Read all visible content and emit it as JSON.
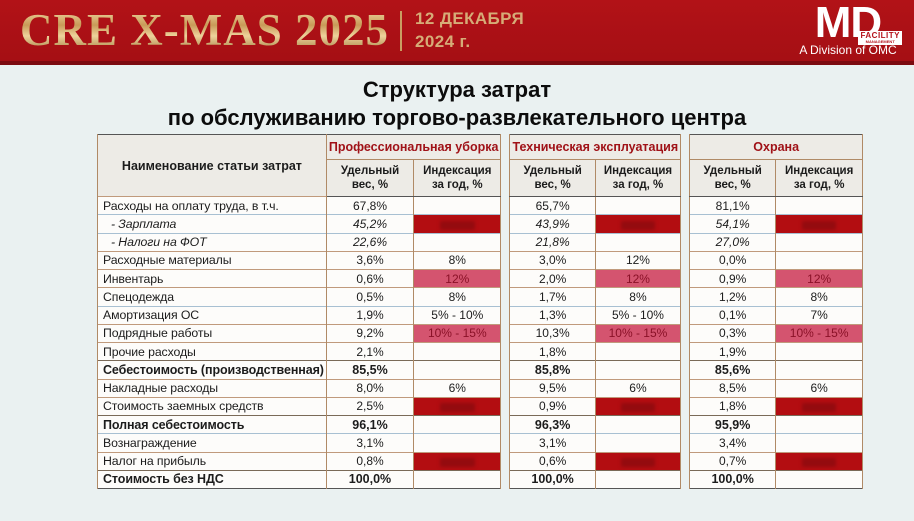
{
  "header": {
    "event_title": "CRE X-MAS 2025",
    "date_line1": "12 ДЕКАБРЯ",
    "date_line2": "2024 г.",
    "logo": {
      "main": "MD",
      "badge_line1": "FACILITY",
      "badge_line2": "MANAGEMENT",
      "division": "A Division of OMC"
    }
  },
  "title": {
    "line1": "Структура затрат",
    "line2": "по обслуживанию торгово-развлекательного центра"
  },
  "table": {
    "row_header": "Наименование статьи затрат",
    "subheaders": [
      "Удельный вес, %",
      "Индексация за год, %"
    ],
    "groups": [
      {
        "id": "cleaning",
        "label": "Профессиональная уборка"
      },
      {
        "id": "maintenance",
        "label": "Техническая эксплуатация"
      },
      {
        "id": "security",
        "label": "Охрана"
      }
    ],
    "rows": [
      {
        "label": "Расходы на оплату труда, в т.ч.",
        "style": "normal",
        "cells": [
          {
            "v": "67,8%"
          },
          {
            "v": ""
          },
          {
            "v": "65,7%"
          },
          {
            "v": ""
          },
          {
            "v": "81,1%"
          },
          {
            "v": ""
          }
        ]
      },
      {
        "label": "- Зарплата",
        "style": "sub",
        "cells": [
          {
            "v": "45,2%"
          },
          {
            "v": "",
            "h": "redacted"
          },
          {
            "v": "43,9%"
          },
          {
            "v": "",
            "h": "redacted"
          },
          {
            "v": "54,1%"
          },
          {
            "v": "",
            "h": "redacted"
          }
        ]
      },
      {
        "label": "- Налоги на ФОТ",
        "style": "sub",
        "cells": [
          {
            "v": "22,6%"
          },
          {
            "v": ""
          },
          {
            "v": "21,8%"
          },
          {
            "v": ""
          },
          {
            "v": "27,0%"
          },
          {
            "v": ""
          }
        ]
      },
      {
        "label": "Расходные материалы",
        "style": "normal",
        "cells": [
          {
            "v": "3,6%"
          },
          {
            "v": "8%"
          },
          {
            "v": "3,0%"
          },
          {
            "v": "12%"
          },
          {
            "v": "0,0%"
          },
          {
            "v": ""
          }
        ]
      },
      {
        "label": "Инвентарь",
        "style": "normal",
        "cells": [
          {
            "v": "0,6%"
          },
          {
            "v": "12%",
            "h": "pink"
          },
          {
            "v": "2,0%"
          },
          {
            "v": "12%",
            "h": "pink"
          },
          {
            "v": "0,9%"
          },
          {
            "v": "12%",
            "h": "pink"
          }
        ]
      },
      {
        "label": "Спецодежда",
        "style": "normal",
        "cells": [
          {
            "v": "0,5%"
          },
          {
            "v": "8%"
          },
          {
            "v": "1,7%"
          },
          {
            "v": "8%"
          },
          {
            "v": "1,2%"
          },
          {
            "v": "8%"
          }
        ]
      },
      {
        "label": "Амортизация ОС",
        "style": "normal",
        "cells": [
          {
            "v": "1,9%"
          },
          {
            "v": "5% - 10%"
          },
          {
            "v": "1,3%"
          },
          {
            "v": "5% - 10%"
          },
          {
            "v": "0,1%"
          },
          {
            "v": "7%"
          }
        ]
      },
      {
        "label": "Подрядные работы",
        "style": "normal",
        "cells": [
          {
            "v": "9,2%"
          },
          {
            "v": "10% - 15%",
            "h": "pink"
          },
          {
            "v": "10,3%"
          },
          {
            "v": "10% - 15%",
            "h": "pink"
          },
          {
            "v": "0,3%"
          },
          {
            "v": "10% - 15%",
            "h": "pink"
          }
        ]
      },
      {
        "label": "Прочие расходы",
        "style": "normal",
        "cells": [
          {
            "v": "2,1%"
          },
          {
            "v": ""
          },
          {
            "v": "1,8%"
          },
          {
            "v": ""
          },
          {
            "v": "1,9%"
          },
          {
            "v": ""
          }
        ]
      },
      {
        "label": "Себестоимость (производственная)",
        "style": "bold",
        "cells": [
          {
            "v": "85,5%"
          },
          {
            "v": ""
          },
          {
            "v": "85,8%"
          },
          {
            "v": ""
          },
          {
            "v": "85,6%"
          },
          {
            "v": ""
          }
        ]
      },
      {
        "label": "Накладные расходы",
        "style": "normal",
        "cells": [
          {
            "v": "8,0%"
          },
          {
            "v": "6%"
          },
          {
            "v": "9,5%"
          },
          {
            "v": "6%"
          },
          {
            "v": "8,5%"
          },
          {
            "v": "6%"
          }
        ]
      },
      {
        "label": "Стоимость заемных средств",
        "style": "normal",
        "cells": [
          {
            "v": "2,5%"
          },
          {
            "v": "",
            "h": "redacted"
          },
          {
            "v": "0,9%"
          },
          {
            "v": "",
            "h": "redacted"
          },
          {
            "v": "1,8%"
          },
          {
            "v": "",
            "h": "redacted"
          }
        ]
      },
      {
        "label": "Полная себестоимость",
        "style": "bold",
        "cells": [
          {
            "v": "96,1%"
          },
          {
            "v": ""
          },
          {
            "v": "96,3%"
          },
          {
            "v": ""
          },
          {
            "v": "95,9%"
          },
          {
            "v": ""
          }
        ]
      },
      {
        "label": "Вознаграждение",
        "style": "normal",
        "cells": [
          {
            "v": "3,1%"
          },
          {
            "v": ""
          },
          {
            "v": "3,1%"
          },
          {
            "v": ""
          },
          {
            "v": "3,4%"
          },
          {
            "v": ""
          }
        ]
      },
      {
        "label": "Налог на прибыль",
        "style": "normal",
        "cells": [
          {
            "v": "0,8%"
          },
          {
            "v": "",
            "h": "redacted"
          },
          {
            "v": "0,6%"
          },
          {
            "v": "",
            "h": "redacted"
          },
          {
            "v": "0,7%"
          },
          {
            "v": "",
            "h": "redacted"
          }
        ]
      },
      {
        "label": "Стоимость без НДС",
        "style": "bold",
        "cells": [
          {
            "v": "100,0%"
          },
          {
            "v": ""
          },
          {
            "v": "100,0%"
          },
          {
            "v": ""
          },
          {
            "v": "100,0%"
          },
          {
            "v": ""
          }
        ]
      }
    ]
  },
  "colors": {
    "header_red": "#ad1015",
    "header_red_dark": "#7c0b10",
    "gold": "#d6ac77",
    "group_header_red": "#a01218",
    "pink_highlight_bg": "#d4546f",
    "pink_highlight_text": "#8a1127",
    "redacted_bg": "#b30d11",
    "page_bg": "#eaf1f1",
    "panel_bg": "#fdfcfa",
    "table_head_bg": "#edebe6"
  }
}
